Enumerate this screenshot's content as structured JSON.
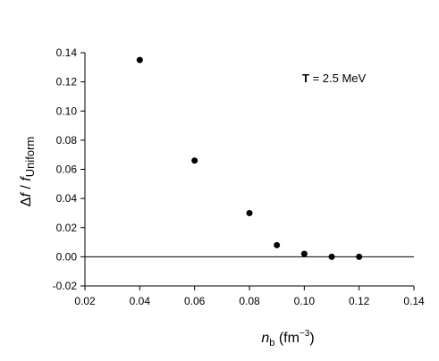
{
  "chart_data": {
    "type": "scatter",
    "annotation": {
      "symbol": "T",
      "text": " = 2.5 MeV"
    },
    "xlabel": {
      "var": "n",
      "sub": "b",
      "units_open": " (fm",
      "units_exp": "−3",
      "units_close": ")"
    },
    "ylabel": {
      "delta": "Δ",
      "f1": "f",
      "slash": " / ",
      "f2": "f",
      "sub": "Uniform"
    },
    "xlim": [
      0.02,
      0.14
    ],
    "ylim": [
      -0.02,
      0.14
    ],
    "xticks": [
      "0.02",
      "0.04",
      "0.06",
      "0.08",
      "0.10",
      "0.12",
      "0.14"
    ],
    "yticks": [
      "-0.02",
      "0.00",
      "0.02",
      "0.04",
      "0.06",
      "0.08",
      "0.10",
      "0.12",
      "0.14"
    ],
    "zero_line": true,
    "grid": false,
    "points": [
      {
        "x": 0.04,
        "y": 0.135
      },
      {
        "x": 0.06,
        "y": 0.066
      },
      {
        "x": 0.08,
        "y": 0.03
      },
      {
        "x": 0.09,
        "y": 0.008
      },
      {
        "x": 0.1,
        "y": 0.002
      },
      {
        "x": 0.11,
        "y": 0.0
      },
      {
        "x": 0.12,
        "y": 0.0
      }
    ],
    "marker_color": "#000000"
  }
}
